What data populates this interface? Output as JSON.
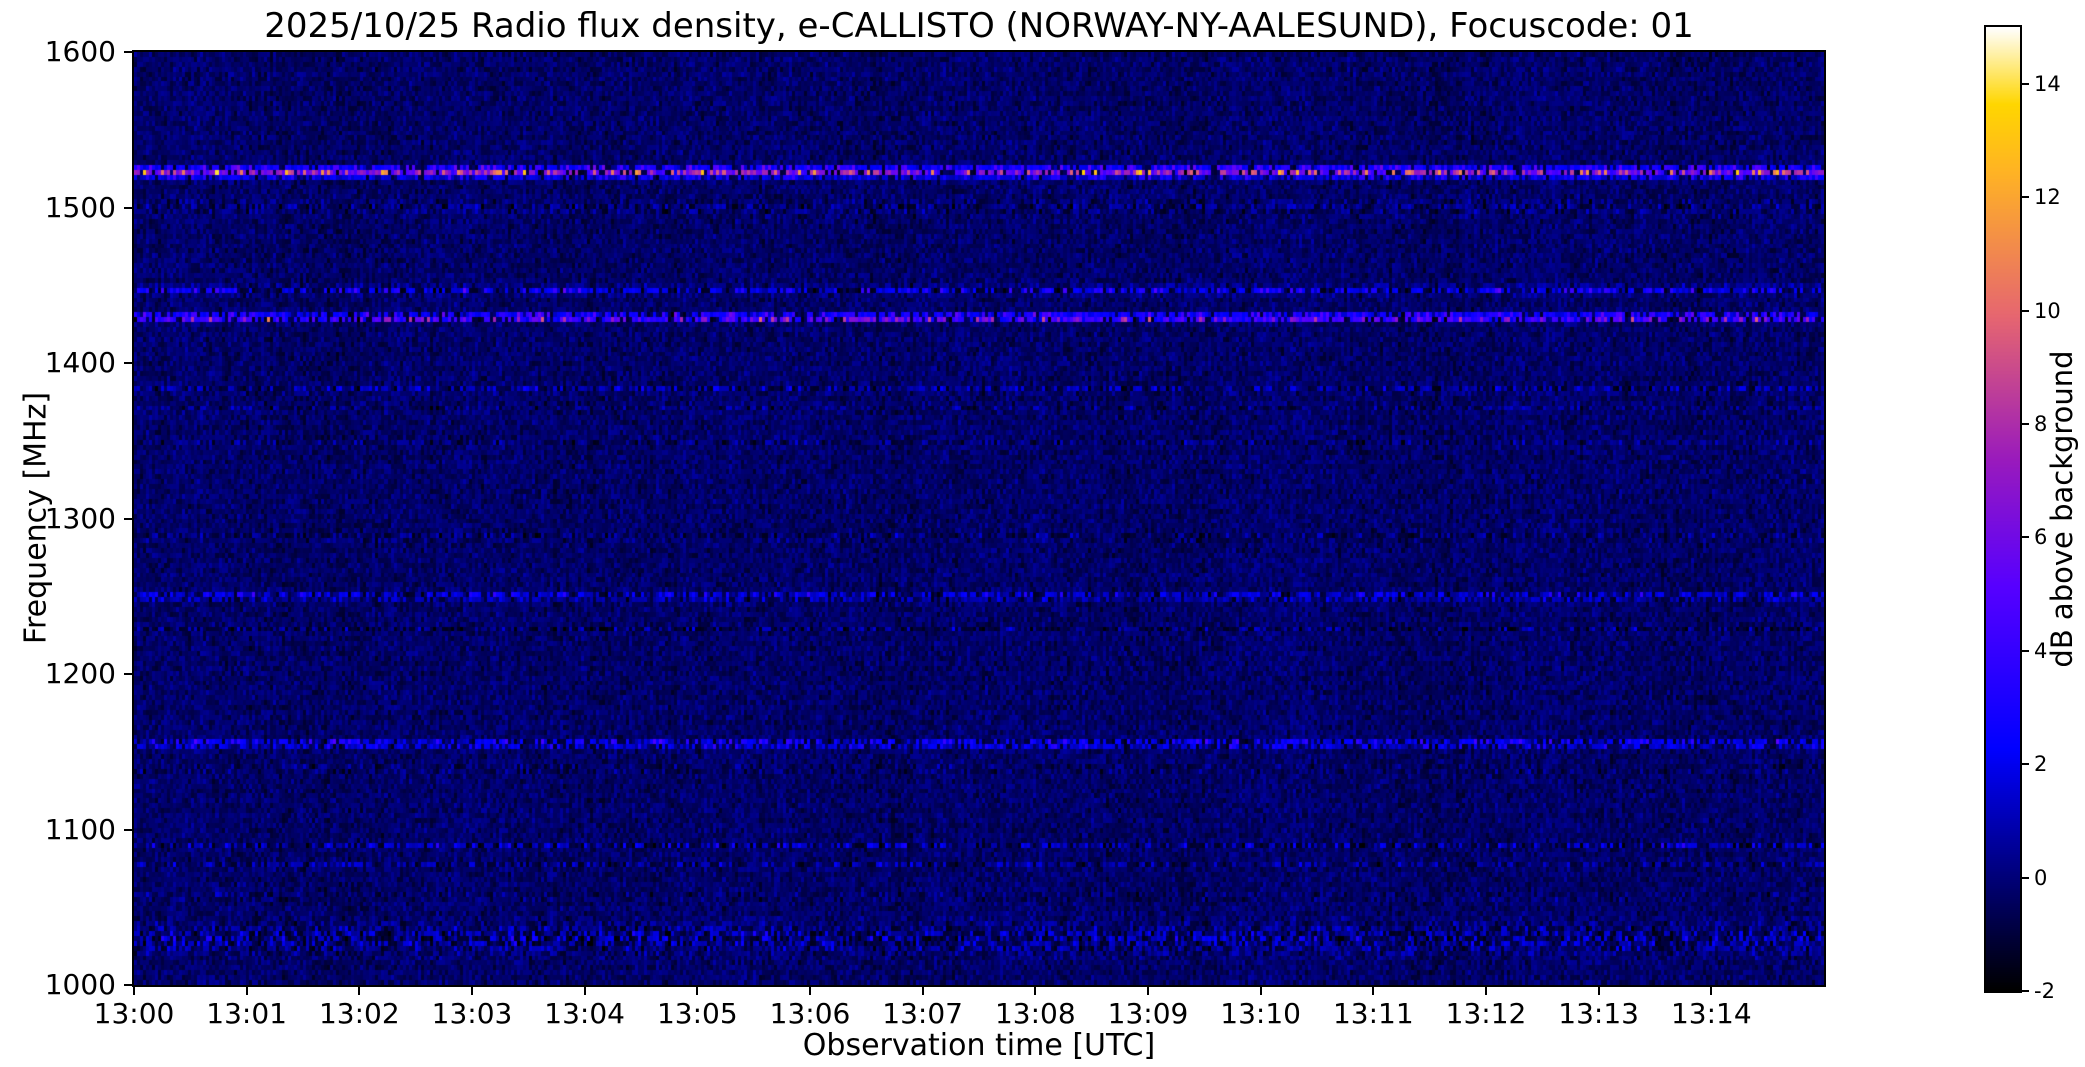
{
  "chart_data": {
    "type": "heatmap",
    "title": "2025/10/25  Radio flux density, e-CALLISTO (NORWAY-NY-AALESUND), Focuscode: 01",
    "xlabel": "Observation time [UTC]",
    "ylabel": "Frequency [MHz]",
    "colorbar_label": "dB above background",
    "x_range": [
      "13:00",
      "13:15"
    ],
    "x_ticks": [
      "13:00",
      "13:01",
      "13:02",
      "13:03",
      "13:04",
      "13:05",
      "13:06",
      "13:07",
      "13:08",
      "13:09",
      "13:10",
      "13:11",
      "13:12",
      "13:13",
      "13:14"
    ],
    "y_range": [
      1000,
      1600
    ],
    "y_ticks": [
      1000,
      1100,
      1200,
      1300,
      1400,
      1500,
      1600
    ],
    "value_range_db": [
      -2,
      15
    ],
    "colorbar_ticks": [
      -2,
      0,
      2,
      4,
      6,
      8,
      10,
      12,
      14
    ],
    "background_level_db": 0,
    "noise_std_db": 0.8,
    "grid": false,
    "legend_position": "colorbar-right",
    "colormap": "gnuplot2 (black - blue - violet - pink - orange - yellow - white)",
    "colormap_stops": [
      {
        "t": 0.0,
        "rgb": [
          0,
          0,
          0
        ]
      },
      {
        "t": 0.125,
        "rgb": [
          0,
          0,
          128
        ]
      },
      {
        "t": 0.25,
        "rgb": [
          0,
          0,
          255
        ]
      },
      {
        "t": 0.42,
        "rgb": [
          87,
          0,
          255
        ]
      },
      {
        "t": 0.55,
        "rgb": [
          153,
          26,
          189
        ]
      },
      {
        "t": 0.7,
        "rgb": [
          230,
          102,
          112
        ]
      },
      {
        "t": 0.85,
        "rgb": [
          255,
          179,
          36
        ]
      },
      {
        "t": 0.92,
        "rgb": [
          255,
          214,
          0
        ]
      },
      {
        "t": 1.0,
        "rgb": [
          255,
          255,
          255
        ]
      }
    ],
    "interference_bands": [
      {
        "freq_mhz": 1523,
        "peak_db": 13,
        "halfwidth_mhz": 5,
        "speckle_density": 0.8
      },
      {
        "freq_mhz": 1500,
        "peak_db": 1.5,
        "halfwidth_mhz": 8,
        "speckle_density": 0.5
      },
      {
        "freq_mhz": 1447,
        "peak_db": 4.5,
        "halfwidth_mhz": 4,
        "speckle_density": 0.6
      },
      {
        "freq_mhz": 1429,
        "peak_db": 11,
        "halfwidth_mhz": 4,
        "speckle_density": 0.75
      },
      {
        "freq_mhz": 1383,
        "peak_db": 3,
        "halfwidth_mhz": 3,
        "speckle_density": 0.5
      },
      {
        "freq_mhz": 1372,
        "peak_db": 2.2,
        "halfwidth_mhz": 2.5,
        "speckle_density": 0.4
      },
      {
        "freq_mhz": 1350,
        "peak_db": 2.2,
        "halfwidth_mhz": 2.5,
        "speckle_density": 0.4
      },
      {
        "freq_mhz": 1288,
        "peak_db": 2,
        "halfwidth_mhz": 3,
        "speckle_density": 0.35
      },
      {
        "freq_mhz": 1250,
        "peak_db": 5,
        "halfwidth_mhz": 3.5,
        "speckle_density": 0.6
      },
      {
        "freq_mhz": 1229,
        "peak_db": 2,
        "halfwidth_mhz": 2.5,
        "speckle_density": 0.3
      },
      {
        "freq_mhz": 1155,
        "peak_db": 7,
        "halfwidth_mhz": 3.5,
        "speckle_density": 0.65
      },
      {
        "freq_mhz": 1139,
        "peak_db": 2,
        "halfwidth_mhz": 3,
        "speckle_density": 0.3
      },
      {
        "freq_mhz": 1090,
        "peak_db": 3,
        "halfwidth_mhz": 2.5,
        "speckle_density": 0.45
      },
      {
        "freq_mhz": 1078,
        "peak_db": 3,
        "halfwidth_mhz": 2.5,
        "speckle_density": 0.45
      },
      {
        "freq_mhz": 1057,
        "peak_db": 2,
        "halfwidth_mhz": 2.5,
        "speckle_density": 0.35
      },
      {
        "freq_mhz": 1030,
        "peak_db": 3,
        "halfwidth_mhz": 16,
        "speckle_density": 0.45
      }
    ]
  }
}
